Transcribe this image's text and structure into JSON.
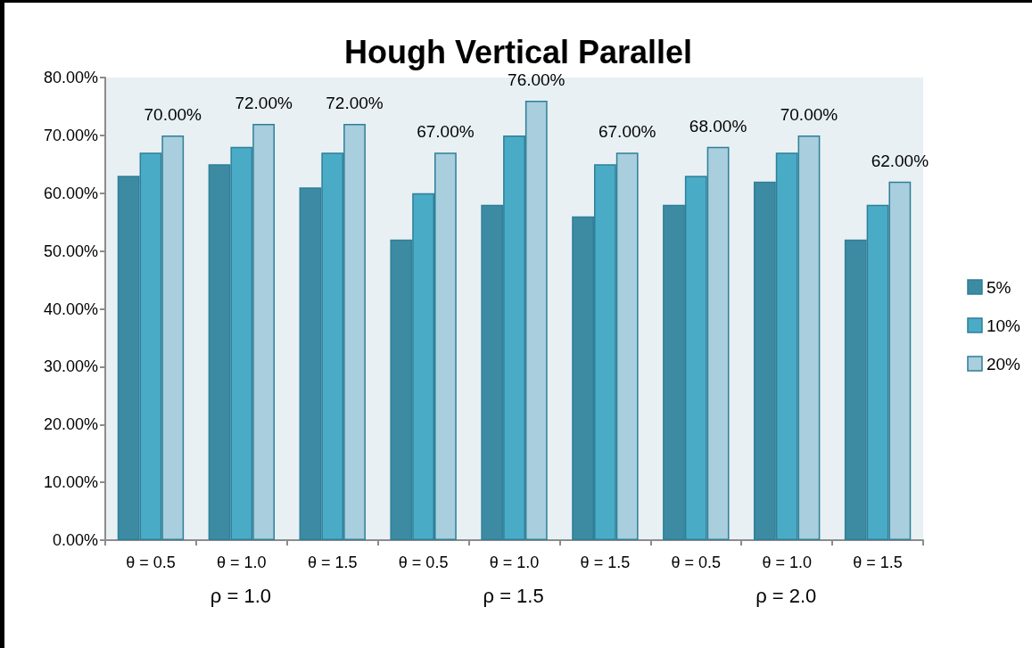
{
  "chart_data": {
    "type": "bar",
    "title": "Hough Vertical Parallel",
    "categories": [
      "θ = 0.5",
      "θ = 1.0",
      "θ = 1.5",
      "θ = 0.5",
      "θ = 1.0",
      "θ = 1.5",
      "θ = 0.5",
      "θ = 1.0",
      "θ = 1.5"
    ],
    "series": [
      {
        "name": "5%",
        "color": "#3d8ba3",
        "values": [
          63,
          65,
          61,
          52,
          58,
          56,
          58,
          62,
          52
        ]
      },
      {
        "name": "10%",
        "color": "#4aabc6",
        "values": [
          67,
          68,
          67,
          60,
          70,
          65,
          63,
          67,
          58
        ]
      },
      {
        "name": "20%",
        "color": "#a9cedd",
        "values": [
          70,
          72,
          72,
          67,
          76,
          67,
          68,
          70,
          62
        ],
        "value_labels": [
          "70.00%",
          "72.00%",
          "72.00%",
          "67.00%",
          "76.00%",
          "67.00%",
          "68.00%",
          "70.00%",
          "62.00%"
        ]
      }
    ],
    "annotations": [
      "ρ = 1.0",
      "ρ = 1.5",
      "ρ = 2.0"
    ],
    "ylim": [
      0,
      80
    ],
    "yticks": [
      {
        "value": 0,
        "label": "0.00%"
      },
      {
        "value": 10,
        "label": "10.00%"
      },
      {
        "value": 20,
        "label": "20.00%"
      },
      {
        "value": 30,
        "label": "30.00%"
      },
      {
        "value": 40,
        "label": "40.00%"
      },
      {
        "value": 50,
        "label": "50.00%"
      },
      {
        "value": 60,
        "label": "60.00%"
      },
      {
        "value": 70,
        "label": "70.00%"
      },
      {
        "value": 80,
        "label": "80.00%"
      }
    ],
    "grid": false,
    "legend": "right"
  }
}
